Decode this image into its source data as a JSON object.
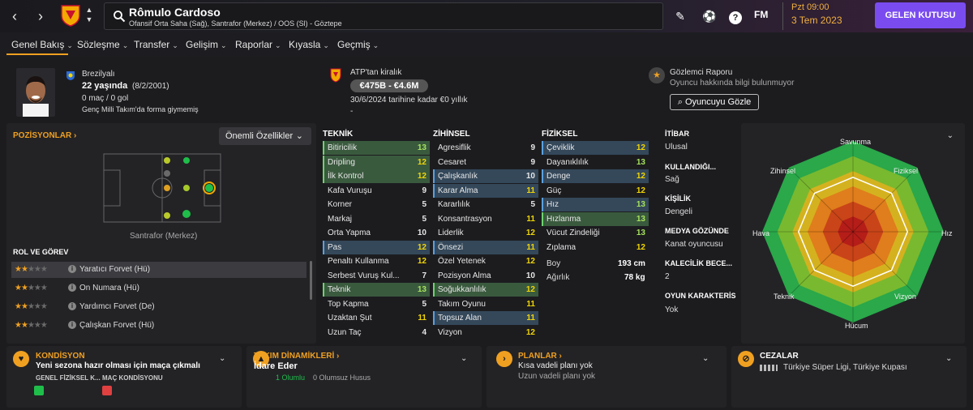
{
  "header": {
    "player_name": "Rômulo Cardoso",
    "player_subtitle": "Ofansif Orta Saha (Sağ), Santrafor (Merkez) / OOS (Sl) - Göztepe",
    "fm_label": "FM",
    "date_time": "Pzt 09:00",
    "date_day": "3 Tem 2023",
    "inbox_label": "GELEN KUTUSU"
  },
  "menu": [
    "Genel Bakış",
    "Sözleşme",
    "Transfer",
    "Gelişim",
    "Raporlar",
    "Kıyasla",
    "Geçmiş"
  ],
  "info": {
    "nationality": "Brezilyalı",
    "age": "22 yaşında",
    "dob": "(8/2/2001)",
    "apps": "0 maç / 0 gol",
    "youth_note": "Genç Milli Takım'da forma giymemiş",
    "loan_status": "ATP'tan kiralık",
    "value": "€475B - €4.6M",
    "loan_until": "30/6/2024 tarihine kadar €0 yıllık",
    "dash": "-",
    "scout_title": "Gözlemci Raporu",
    "scout_text": "Oyuncu hakkında bilgi bulunmuyor",
    "scout_button": "Oyuncuyu Gözle"
  },
  "positions": {
    "title": "POZİSYONLAR",
    "attributes_button": "Önemli Özellikler",
    "position_label": "Santrafor (Merkez)",
    "roles_title": "ROL VE GÖREV",
    "roles": [
      {
        "name": "Yaratıcı Forvet (Hü)",
        "stars": 2
      },
      {
        "name": "On Numara (Hü)",
        "stars": 2
      },
      {
        "name": "Yardımcı Forvet (De)",
        "stars": 2
      },
      {
        "name": "Çalışkan Forvet (Hü)",
        "stars": 2
      }
    ]
  },
  "attributes": {
    "technical_title": "TEKNİK",
    "mental_title": "ZİHİNSEL",
    "physical_title": "FİZİKSEL",
    "technical": [
      {
        "name": "Bitiricilik",
        "value": "13",
        "hl": "green"
      },
      {
        "name": "Dripling",
        "value": "12",
        "hl": "green"
      },
      {
        "name": "İlk Kontrol",
        "value": "12",
        "hl": "green"
      },
      {
        "name": "Kafa Vuruşu",
        "value": "9",
        "hl": ""
      },
      {
        "name": "Korner",
        "value": "5",
        "hl": ""
      },
      {
        "name": "Markaj",
        "value": "5",
        "hl": ""
      },
      {
        "name": "Orta Yapma",
        "value": "10",
        "hl": ""
      },
      {
        "name": "Pas",
        "value": "12",
        "hl": "blue"
      },
      {
        "name": "Penaltı Kullanma",
        "value": "12",
        "hl": ""
      },
      {
        "name": "Serbest Vuruş Kul...",
        "value": "7",
        "hl": ""
      },
      {
        "name": "Teknik",
        "value": "13",
        "hl": "green"
      },
      {
        "name": "Top Kapma",
        "value": "5",
        "hl": ""
      },
      {
        "name": "Uzaktan Şut",
        "value": "11",
        "hl": ""
      },
      {
        "name": "Uzun Taç",
        "value": "4",
        "hl": ""
      }
    ],
    "mental": [
      {
        "name": "Agresiflik",
        "value": "9",
        "hl": ""
      },
      {
        "name": "Cesaret",
        "value": "9",
        "hl": ""
      },
      {
        "name": "Çalışkanlık",
        "value": "10",
        "hl": "blue"
      },
      {
        "name": "Karar Alma",
        "value": "11",
        "hl": "blue"
      },
      {
        "name": "Kararlılık",
        "value": "5",
        "hl": ""
      },
      {
        "name": "Konsantrasyon",
        "value": "11",
        "hl": ""
      },
      {
        "name": "Liderlik",
        "value": "12",
        "hl": ""
      },
      {
        "name": "Önsezi",
        "value": "11",
        "hl": "blue"
      },
      {
        "name": "Özel Yetenek",
        "value": "12",
        "hl": ""
      },
      {
        "name": "Pozisyon Alma",
        "value": "10",
        "hl": ""
      },
      {
        "name": "Soğukkanlılık",
        "value": "12",
        "hl": "green"
      },
      {
        "name": "Takım Oyunu",
        "value": "11",
        "hl": ""
      },
      {
        "name": "Topsuz Alan",
        "value": "11",
        "hl": "blue"
      },
      {
        "name": "Vizyon",
        "value": "12",
        "hl": ""
      }
    ],
    "physical": [
      {
        "name": "Çeviklik",
        "value": "12",
        "hl": "blue"
      },
      {
        "name": "Dayanıklılık",
        "value": "13",
        "hl": ""
      },
      {
        "name": "Denge",
        "value": "12",
        "hl": "blue"
      },
      {
        "name": "Güç",
        "value": "12",
        "hl": ""
      },
      {
        "name": "Hız",
        "value": "13",
        "hl": "blue"
      },
      {
        "name": "Hızlanma",
        "value": "13",
        "hl": "green"
      },
      {
        "name": "Vücut Zindeliği",
        "value": "13",
        "hl": ""
      },
      {
        "name": "Zıplama",
        "value": "12",
        "hl": ""
      }
    ],
    "height_label": "Boy",
    "height_value": "193 cm",
    "weight_label": "Ağırlık",
    "weight_value": "78 kg"
  },
  "side_info": {
    "reputation_title": "İTİBAR",
    "reputation_value": "Ulusal",
    "foot_title": "KULLANDIĞI...",
    "foot_value": "Sağ",
    "personality_title": "KİŞİLİK",
    "personality_value": "Dengeli",
    "media_title": "MEDYA GÖZÜNDE",
    "media_value": "Kanat oyuncusu",
    "gk_title": "KALECİLİK BECE...",
    "gk_value": "2",
    "character_title": "OYUN KARAKTERİS",
    "character_value": "Yok"
  },
  "radar": {
    "labels": [
      "Savunma",
      "Fiziksel",
      "Hız",
      "Vizyon",
      "Hücum",
      "Teknik",
      "Hava",
      "Zihinsel"
    ],
    "colors": [
      "#2aa84a",
      "#79b92f",
      "#d4b21f",
      "#e07d1c",
      "#c94418",
      "#b51d18"
    ]
  },
  "bottom": {
    "condition_title": "KONDİSYON",
    "condition_main": "Yeni sezona hazır olması için maça çıkmalı",
    "condition_col1": "GENEL FİZİKSEL K...",
    "condition_col2": "MAÇ KONDİSYONU",
    "dynamics_title": "TAKIM DİNAMİKLERİ",
    "dynamics_main": "İdare Eder",
    "dynamics_positive": "1 Olumlu",
    "dynamics_negative": "0 Olumsuz Husus",
    "plans_title": "PLANLAR",
    "plans_main": "Kısa vadeli planı yok",
    "plans_sub": "Uzun vadeli planı yok",
    "bans_title": "CEZALAR",
    "bans_text": "Türkiye Süper Ligi, Türkiye Kupası"
  }
}
